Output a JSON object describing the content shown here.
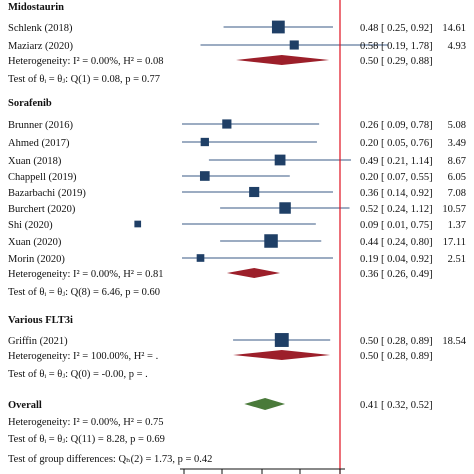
{
  "chart_data": {
    "type": "forest",
    "reference_line": 1,
    "groups": [
      {
        "name": "Midostaurin",
        "studies": [
          {
            "label": "Schlenk (2018)",
            "es": 0.48,
            "lo": 0.25,
            "hi": 0.92,
            "weight": 14.61,
            "ci_text": "0.48 [   0.25,   0.92]",
            "weight_text": "14.61"
          },
          {
            "label": "Maziarz (2020)",
            "es": 0.58,
            "lo": 0.19,
            "hi": 1.78,
            "weight": 4.93,
            "ci_text": "0.58 [   0.19,   1.78]",
            "weight_text": "4.93"
          }
        ],
        "summary": {
          "label": "Heterogeneity: I² = 0.00%, H² = 0.08",
          "es": 0.5,
          "lo": 0.29,
          "hi": 0.88,
          "ci_text": "0.50 [   0.29,   0.88]"
        },
        "test": "Test of θᵢ = θⱼ: Q(1) = 0.08, p = 0.77"
      },
      {
        "name": "Sorafenib",
        "studies": [
          {
            "label": "Brunner (2016)",
            "es": 0.26,
            "lo": 0.09,
            "hi": 0.78,
            "weight": 5.08,
            "ci_text": "0.26 [   0.09,   0.78]",
            "weight_text": "5.08"
          },
          {
            "label": "Ahmed (2017)",
            "es": 0.2,
            "lo": 0.05,
            "hi": 0.76,
            "weight": 3.49,
            "ci_text": "0.20 [   0.05,   0.76]",
            "weight_text": "3.49"
          },
          {
            "label": "Xuan (2018)",
            "es": 0.49,
            "lo": 0.21,
            "hi": 1.14,
            "weight": 8.67,
            "ci_text": "0.49 [   0.21,   1.14]",
            "weight_text": "8.67"
          },
          {
            "label": "Chappell (2019)",
            "es": 0.2,
            "lo": 0.07,
            "hi": 0.55,
            "weight": 6.05,
            "ci_text": "0.20 [   0.07,   0.55]",
            "weight_text": "6.05"
          },
          {
            "label": "Bazarbachi (2019)",
            "es": 0.36,
            "lo": 0.14,
            "hi": 0.92,
            "weight": 7.08,
            "ci_text": "0.36 [   0.14,   0.92]",
            "weight_text": "7.08"
          },
          {
            "label": "Burchert (2020)",
            "es": 0.52,
            "lo": 0.24,
            "hi": 1.12,
            "weight": 10.57,
            "ci_text": "0.52 [   0.24,   1.12]",
            "weight_text": "10.57"
          },
          {
            "label": "Shi (2020)",
            "es": 0.09,
            "lo": 0.01,
            "hi": 0.75,
            "weight": 1.37,
            "ci_text": "0.09 [   0.01,   0.75]",
            "weight_text": "1.37"
          },
          {
            "label": "Xuan (2020)",
            "es": 0.44,
            "lo": 0.24,
            "hi": 0.8,
            "weight": 17.11,
            "ci_text": "0.44 [   0.24,   0.80]",
            "weight_text": "17.11"
          },
          {
            "label": "Morin (2020)",
            "es": 0.19,
            "lo": 0.04,
            "hi": 0.92,
            "weight": 2.51,
            "ci_text": "0.19 [   0.04,   0.92]",
            "weight_text": "2.51"
          }
        ],
        "summary": {
          "label": "Heterogeneity: I² = 0.00%, H² = 0.81",
          "es": 0.36,
          "lo": 0.26,
          "hi": 0.49,
          "ci_text": "0.36 [   0.26,   0.49]"
        },
        "test": "Test of θᵢ = θⱼ: Q(8) = 6.46, p = 0.60"
      },
      {
        "name": "Various FLT3i",
        "studies": [
          {
            "label": "Griffin (2021)",
            "es": 0.5,
            "lo": 0.28,
            "hi": 0.89,
            "weight": 18.54,
            "ci_text": "0.50 [   0.28,   0.89]",
            "weight_text": "18.54"
          }
        ],
        "summary": {
          "label": "Heterogeneity: I² = 100.00%, H² = .",
          "es": 0.5,
          "lo": 0.28,
          "hi": 0.89,
          "ci_text": "0.50 [   0.28,   0.89]"
        },
        "test": "Test of θᵢ = θⱼ: Q(0) = -0.00, p = ."
      }
    ],
    "overall": {
      "name": "Overall",
      "heterogeneity": "Heterogeneity: I² = 0.00%, H² = 0.75",
      "es": 0.41,
      "lo": 0.32,
      "hi": 0.52,
      "ci_text": "0.41 [   0.32,   0.52]",
      "test": "Test of θᵢ = θⱼ: Q(11) = 8.28, p = 0.69",
      "group_diff": "Test of group differences: Qₕ(2) = 1.73, p = 0.42"
    },
    "x_scale": "log",
    "colors": {
      "marker": "#1f3f66",
      "ci_line": "#3a5a84",
      "group_diamond": "#9c1f2a",
      "overall_diamond": "#4a7a3a",
      "reference": "#e01020"
    }
  }
}
